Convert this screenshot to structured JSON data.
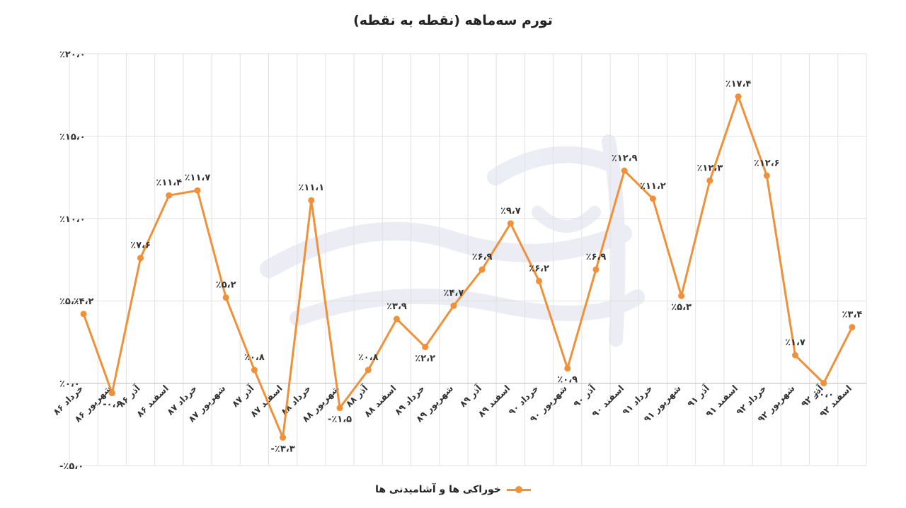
{
  "chart_data": {
    "type": "line",
    "title": "تورم سه‌ماهه (نقطه به نقطه)",
    "xlabel": "",
    "ylabel": "",
    "ylim": [
      -5,
      20
    ],
    "yticks": [
      -5,
      0,
      5,
      10,
      15,
      20
    ],
    "ytick_labels": [
      "٪۵،۰-",
      "٪۰،۰",
      "٪۵،۰",
      "٪۱۰،۰",
      "٪۱۵،۰",
      "٪۲۰،۰"
    ],
    "grid": "vertical",
    "legend_position": "bottom",
    "categories": [
      "خرداد ۸۶",
      "شهریور ۸۶",
      "آذر ۸۶",
      "اسفند ۸۶",
      "خرداد ۸۷",
      "شهریور ۸۷",
      "آذر ۸۷",
      "اسفند ۸۷",
      "خرداد ۸۸",
      "شهریور ۸۸",
      "آذر ۸۸",
      "اسفند ۸۸",
      "خرداد ۸۹",
      "شهریور ۸۹",
      "آذر ۸۹",
      "اسفند ۸۹",
      "خرداد ۹۰",
      "شهریور ۹۰",
      "آذر ۹۰",
      "اسفند ۹۰",
      "خرداد ۹۱",
      "شهریور ۹۱",
      "آذر ۹۱",
      "اسفند ۹۱",
      "خرداد ۹۲",
      "شهریور ۹۲",
      "آذر ۹۲",
      "اسفند ۹۲"
    ],
    "series": [
      {
        "name": "خوراکی ها و آشامیدنی ها",
        "color": "#f0913a",
        "values": [
          4.2,
          -0.6,
          7.6,
          11.4,
          11.7,
          5.2,
          0.8,
          -3.3,
          11.1,
          -1.5,
          0.8,
          3.9,
          2.2,
          4.7,
          6.9,
          9.7,
          6.2,
          0.9,
          6.9,
          12.9,
          11.2,
          5.3,
          12.3,
          17.4,
          12.6,
          1.7,
          0.0,
          3.4
        ],
        "data_labels": [
          "٪۴،۲",
          "۰،۶-",
          "٪۷،۶",
          "٪۱۱،۴",
          "٪۱۱،۷",
          "٪۵،۲",
          "٪۰،۸",
          "٪۳،۳-",
          "٪۱۱،۱",
          "٪۱،۵-",
          "٪۰،۸",
          "٪۳،۹",
          "٪۲،۲",
          "٪۴،۷",
          "٪۶،۹",
          "٪۹،۷",
          "٪۶،۲",
          "٪۰،۹",
          "٪۶،۹",
          "٪۱۲،۹",
          "٪۱۱،۲",
          "٪۵،۳",
          "٪۱۲،۳",
          "٪۱۷،۴",
          "٪۱۲،۶",
          "٪۱،۷",
          "٪۰،۰",
          "٪۳،۴"
        ]
      }
    ]
  }
}
